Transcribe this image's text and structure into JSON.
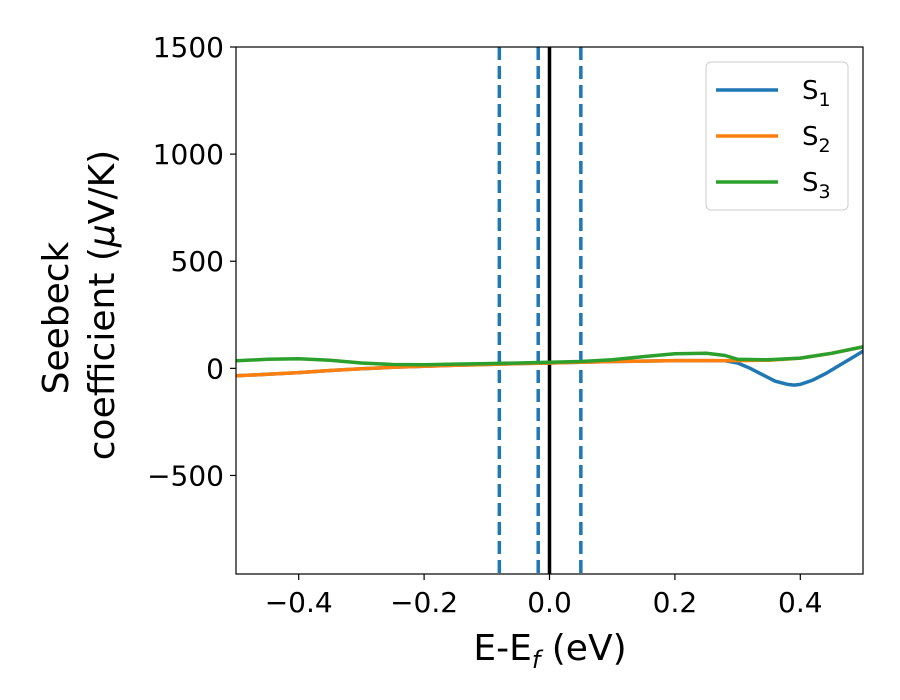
{
  "chart_data": {
    "type": "line",
    "xlabel": {
      "main": "E-E",
      "sub": "f",
      "unit": " (eV)"
    },
    "ylabel": {
      "line1": "Seebeck",
      "line2_prefix": "coefficient  (",
      "mu": "μ",
      "line2_suffix": "V/K)"
    },
    "xlim": [
      -0.5,
      0.5
    ],
    "ylim": [
      -960,
      1500
    ],
    "xticks": [
      -0.4,
      -0.2,
      0.0,
      0.2,
      0.4
    ],
    "xtick_labels": [
      "−0.4",
      "−0.2",
      "0.0",
      "0.2",
      "0.4"
    ],
    "yticks": [
      -500,
      0,
      500,
      1000,
      1500
    ],
    "ytick_labels": [
      "−500",
      "0",
      "500",
      "1000",
      "1500"
    ],
    "legend_position": "top-right",
    "colors": {
      "s1": "#1f77b4",
      "s2": "#ff7f0e",
      "s3": "#2ca02c",
      "fermi": "#000000",
      "dashed": "#1f77b4"
    },
    "vlines": {
      "solid": [
        0.0
      ],
      "dashed": [
        -0.08,
        -0.018,
        0.05
      ]
    },
    "series": [
      {
        "name": "S",
        "sub": "1",
        "x": [
          -0.5,
          -0.45,
          -0.4,
          -0.35,
          -0.3,
          -0.25,
          -0.2,
          -0.15,
          -0.1,
          -0.05,
          0.0,
          0.05,
          0.1,
          0.15,
          0.2,
          0.25,
          0.28,
          0.3,
          0.32,
          0.34,
          0.36,
          0.38,
          0.39,
          0.4,
          0.42,
          0.44,
          0.46,
          0.48,
          0.5
        ],
        "y": [
          -35,
          -28,
          -20,
          -10,
          -2,
          5,
          10,
          14,
          18,
          22,
          25,
          28,
          32,
          34,
          36,
          36,
          35,
          25,
          0,
          -30,
          -60,
          -75,
          -78,
          -75,
          -55,
          -25,
          10,
          45,
          80
        ]
      },
      {
        "name": "S",
        "sub": "2",
        "x": [
          -0.5,
          -0.45,
          -0.4,
          -0.35,
          -0.3,
          -0.25,
          -0.2,
          -0.15,
          -0.1,
          -0.05,
          0.0,
          0.05,
          0.1,
          0.15,
          0.2,
          0.25,
          0.3,
          0.35,
          0.4,
          0.45,
          0.5
        ],
        "y": [
          -35,
          -28,
          -20,
          -10,
          -2,
          5,
          10,
          14,
          18,
          22,
          25,
          28,
          32,
          34,
          36,
          36,
          36,
          38,
          48,
          70,
          100
        ]
      },
      {
        "name": "S",
        "sub": "3",
        "x": [
          -0.5,
          -0.45,
          -0.4,
          -0.35,
          -0.3,
          -0.25,
          -0.2,
          -0.15,
          -0.1,
          -0.05,
          0.0,
          0.05,
          0.1,
          0.15,
          0.2,
          0.25,
          0.28,
          0.3,
          0.35,
          0.4,
          0.45,
          0.5
        ],
        "y": [
          35,
          42,
          45,
          38,
          25,
          18,
          17,
          20,
          22,
          25,
          28,
          32,
          40,
          55,
          68,
          70,
          60,
          42,
          40,
          48,
          70,
          100
        ]
      }
    ]
  }
}
